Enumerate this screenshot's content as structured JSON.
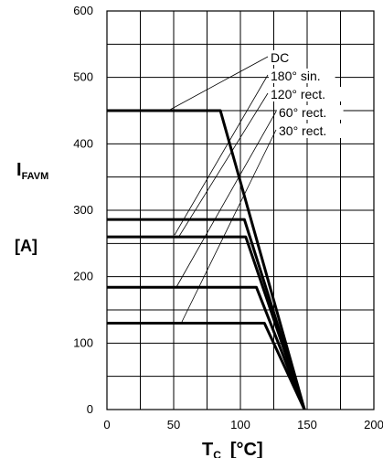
{
  "chart_data": {
    "type": "line",
    "title": "",
    "xlabel": {
      "main": "T",
      "sub": "C",
      "unit": "[°C]"
    },
    "ylabel": {
      "main": "I",
      "sub": "FAVM",
      "unit": "[A]"
    },
    "xlim": [
      0,
      200
    ],
    "ylim": [
      0,
      600
    ],
    "xticks": [
      0,
      50,
      100,
      150,
      200
    ],
    "yticks": [
      0,
      100,
      200,
      300,
      400,
      500,
      600
    ],
    "grid": true,
    "series": [
      {
        "name": "DC",
        "x": [
          0,
          85,
          148
        ],
        "y": [
          450,
          450,
          0
        ]
      },
      {
        "name": "180° sin.",
        "x": [
          0,
          103,
          148
        ],
        "y": [
          286,
          286,
          0
        ]
      },
      {
        "name": "120° rect.",
        "x": [
          0,
          104,
          148
        ],
        "y": [
          260,
          260,
          0
        ]
      },
      {
        "name": "60° rect.",
        "x": [
          0,
          112,
          148
        ],
        "y": [
          184,
          184,
          0
        ]
      },
      {
        "name": "30° rect.",
        "x": [
          0,
          118,
          148
        ],
        "y": [
          130,
          130,
          0
        ]
      }
    ]
  }
}
